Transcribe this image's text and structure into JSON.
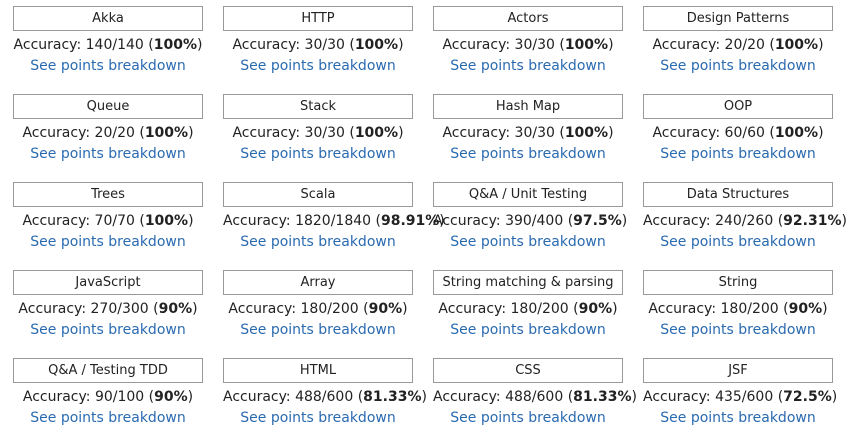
{
  "labels": {
    "accuracy_prefix": "Accuracy: ",
    "breakdown_link": "See points breakdown"
  },
  "colors": {
    "link": "#2a6ab0",
    "box_border": "#999999",
    "text": "#222222"
  },
  "skills": [
    {
      "name": "Akka",
      "score": "140/140",
      "percent": "100%"
    },
    {
      "name": "HTTP",
      "score": "30/30",
      "percent": "100%"
    },
    {
      "name": "Actors",
      "score": "30/30",
      "percent": "100%"
    },
    {
      "name": "Design Patterns",
      "score": "20/20",
      "percent": "100%"
    },
    {
      "name": "Queue",
      "score": "20/20",
      "percent": "100%"
    },
    {
      "name": "Stack",
      "score": "30/30",
      "percent": "100%"
    },
    {
      "name": "Hash Map",
      "score": "30/30",
      "percent": "100%"
    },
    {
      "name": "OOP",
      "score": "60/60",
      "percent": "100%"
    },
    {
      "name": "Trees",
      "score": "70/70",
      "percent": "100%"
    },
    {
      "name": "Scala",
      "score": "1820/1840",
      "percent": "98.91%"
    },
    {
      "name": "Q&A / Unit Testing",
      "score": "390/400",
      "percent": "97.5%"
    },
    {
      "name": "Data Structures",
      "score": "240/260",
      "percent": "92.31%"
    },
    {
      "name": "JavaScript",
      "score": "270/300",
      "percent": "90%"
    },
    {
      "name": "Array",
      "score": "180/200",
      "percent": "90%"
    },
    {
      "name": "String matching & parsing",
      "score": "180/200",
      "percent": "90%"
    },
    {
      "name": "String",
      "score": "180/200",
      "percent": "90%"
    },
    {
      "name": "Q&A / Testing TDD",
      "score": "90/100",
      "percent": "90%"
    },
    {
      "name": "HTML",
      "score": "488/600",
      "percent": "81.33%"
    },
    {
      "name": "CSS",
      "score": "488/600",
      "percent": "81.33%"
    },
    {
      "name": "JSF",
      "score": "435/600",
      "percent": "72.5%"
    }
  ]
}
